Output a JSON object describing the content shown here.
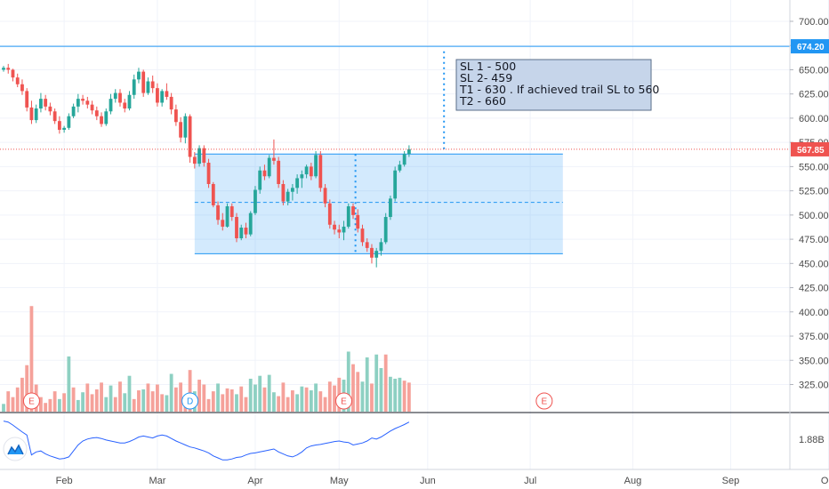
{
  "chart_data": {
    "type": "candlestick",
    "title": "",
    "price_axis": {
      "ylim": [
        297,
        722
      ],
      "ticks": [
        "700.00",
        "675.00",
        "650.00",
        "625.00",
        "600.00",
        "575.00",
        "550.00",
        "525.00",
        "500.00",
        "475.00",
        "450.00",
        "425.00",
        "400.00",
        "375.00",
        "350.00",
        "325.00"
      ],
      "tick_values": [
        700,
        675,
        650,
        625,
        600,
        575,
        550,
        525,
        500,
        475,
        450,
        425,
        400,
        375,
        350,
        325
      ]
    },
    "time_axis": {
      "labels": [
        "Feb",
        "Mar",
        "Apr",
        "May",
        "Jun",
        "Jul",
        "Aug",
        "Sep",
        "Oct"
      ],
      "label_bars": [
        13,
        33,
        54,
        72,
        91,
        113,
        135,
        156,
        177
      ]
    },
    "last_price": {
      "value": 567.85,
      "label": "567.85",
      "color": "#ef5350"
    },
    "horizontal_level": {
      "value": 674.2,
      "label": "674.20",
      "color": "#2196f3"
    },
    "range_box": {
      "top": 563,
      "bottom": 460,
      "mid": 513,
      "from_bar": 41,
      "to_bar": 120
    },
    "vertical_markers": [
      {
        "bar": 75.5,
        "from": 563,
        "to": 460
      },
      {
        "bar": 94.5,
        "from": 568,
        "to": 669
      }
    ],
    "annotation": {
      "lines": [
        "SL 1 - 500",
        "SL 2- 459",
        "T1 - 630 . If achieved trail SL to 560",
        "T2 - 660"
      ]
    },
    "volume_axis_max": 350,
    "candles": [
      [
        650,
        654,
        648,
        652
      ],
      [
        652,
        656,
        646,
        650
      ],
      [
        650,
        651,
        638,
        642
      ],
      [
        642,
        646,
        632,
        635
      ],
      [
        635,
        640,
        624,
        628
      ],
      [
        628,
        631,
        607,
        611
      ],
      [
        611,
        618,
        594,
        598
      ],
      [
        598,
        614,
        595,
        610
      ],
      [
        610,
        626,
        606,
        620
      ],
      [
        620,
        624,
        608,
        612
      ],
      [
        612,
        616,
        603,
        607
      ],
      [
        607,
        610,
        594,
        597
      ],
      [
        597,
        602,
        584,
        588
      ],
      [
        588,
        592,
        585,
        590
      ],
      [
        590,
        605,
        588,
        602
      ],
      [
        602,
        615,
        600,
        612
      ],
      [
        612,
        625,
        606,
        620
      ],
      [
        620,
        624,
        614,
        618
      ],
      [
        618,
        622,
        610,
        614
      ],
      [
        614,
        618,
        604,
        608
      ],
      [
        608,
        612,
        598,
        602
      ],
      [
        602,
        606,
        591,
        594
      ],
      [
        594,
        610,
        592,
        607
      ],
      [
        607,
        625,
        604,
        620
      ],
      [
        620,
        630,
        616,
        626
      ],
      [
        626,
        630,
        612,
        616
      ],
      [
        616,
        620,
        606,
        610
      ],
      [
        610,
        628,
        608,
        624
      ],
      [
        624,
        645,
        620,
        640
      ],
      [
        640,
        652,
        636,
        648
      ],
      [
        648,
        650,
        622,
        626
      ],
      [
        626,
        642,
        624,
        638
      ],
      [
        638,
        644,
        626,
        631
      ],
      [
        631,
        636,
        612,
        616
      ],
      [
        616,
        630,
        612,
        628
      ],
      [
        628,
        636,
        619,
        622
      ],
      [
        622,
        626,
        604,
        609
      ],
      [
        609,
        614,
        592,
        596
      ],
      [
        596,
        601,
        575,
        580
      ],
      [
        580,
        605,
        574,
        602
      ],
      [
        602,
        604,
        554,
        560
      ],
      [
        560,
        565,
        548,
        553
      ],
      [
        553,
        572,
        550,
        569
      ],
      [
        569,
        572,
        550,
        554
      ],
      [
        554,
        558,
        528,
        532
      ],
      [
        532,
        534,
        508,
        510
      ],
      [
        510,
        514,
        490,
        495
      ],
      [
        495,
        502,
        484,
        488
      ],
      [
        488,
        512,
        487,
        509
      ],
      [
        509,
        512,
        494,
        498
      ],
      [
        498,
        502,
        472,
        476
      ],
      [
        476,
        490,
        474,
        487
      ],
      [
        487,
        492,
        476,
        480
      ],
      [
        480,
        504,
        478,
        502
      ],
      [
        502,
        530,
        500,
        526
      ],
      [
        526,
        550,
        522,
        546
      ],
      [
        546,
        552,
        536,
        540
      ],
      [
        540,
        562,
        538,
        559
      ],
      [
        559,
        578,
        552,
        556
      ],
      [
        556,
        560,
        528,
        532
      ],
      [
        532,
        536,
        510,
        514
      ],
      [
        514,
        527,
        510,
        524
      ],
      [
        524,
        532,
        515,
        528
      ],
      [
        528,
        542,
        522,
        538
      ],
      [
        538,
        546,
        528,
        542
      ],
      [
        542,
        552,
        538,
        550
      ],
      [
        550,
        554,
        536,
        540
      ],
      [
        540,
        566,
        538,
        562
      ],
      [
        562,
        566,
        524,
        528
      ],
      [
        528,
        532,
        508,
        512
      ],
      [
        512,
        516,
        486,
        490
      ],
      [
        490,
        494,
        480,
        485
      ],
      [
        485,
        490,
        476,
        482
      ],
      [
        482,
        494,
        474,
        488
      ],
      [
        488,
        512,
        486,
        509
      ],
      [
        509,
        512,
        496,
        500
      ],
      [
        500,
        506,
        482,
        486
      ],
      [
        486,
        490,
        468,
        472
      ],
      [
        472,
        476,
        462,
        466
      ],
      [
        466,
        470,
        450,
        456
      ],
      [
        456,
        466,
        446,
        463
      ],
      [
        463,
        476,
        458,
        472
      ],
      [
        472,
        502,
        470,
        498
      ],
      [
        498,
        520,
        495,
        517
      ],
      [
        517,
        550,
        514,
        546
      ],
      [
        546,
        556,
        544,
        552
      ],
      [
        552,
        566,
        550,
        563
      ],
      [
        563,
        572,
        560,
        568
      ]
    ],
    "volumes": [
      [
        305,
        1
      ],
      [
        318,
        0
      ],
      [
        312,
        0
      ],
      [
        322,
        0
      ],
      [
        332,
        0
      ],
      [
        345,
        0
      ],
      [
        406,
        0
      ],
      [
        325,
        0
      ],
      [
        312,
        0
      ],
      [
        306,
        0
      ],
      [
        310,
        0
      ],
      [
        318,
        0
      ],
      [
        310,
        1
      ],
      [
        316,
        0
      ],
      [
        354,
        1
      ],
      [
        322,
        0
      ],
      [
        309,
        1
      ],
      [
        317,
        1
      ],
      [
        326,
        0
      ],
      [
        315,
        0
      ],
      [
        320,
        0
      ],
      [
        327,
        0
      ],
      [
        312,
        1
      ],
      [
        324,
        1
      ],
      [
        312,
        0
      ],
      [
        328,
        0
      ],
      [
        316,
        1
      ],
      [
        334,
        1
      ],
      [
        310,
        0
      ],
      [
        319,
        0
      ],
      [
        320,
        1
      ],
      [
        326,
        0
      ],
      [
        318,
        0
      ],
      [
        325,
        0
      ],
      [
        315,
        0
      ],
      [
        314,
        1
      ],
      [
        336,
        1
      ],
      [
        322,
        0
      ],
      [
        327,
        0
      ],
      [
        314,
        0
      ],
      [
        340,
        0
      ],
      [
        318,
        1
      ],
      [
        330,
        0
      ],
      [
        325,
        0
      ],
      [
        310,
        0
      ],
      [
        318,
        0
      ],
      [
        326,
        1
      ],
      [
        315,
        0
      ],
      [
        321,
        0
      ],
      [
        320,
        0
      ],
      [
        315,
        1
      ],
      [
        323,
        0
      ],
      [
        312,
        0
      ],
      [
        331,
        1
      ],
      [
        325,
        1
      ],
      [
        334,
        1
      ],
      [
        322,
        0
      ],
      [
        335,
        1
      ],
      [
        317,
        1
      ],
      [
        313,
        0
      ],
      [
        327,
        0
      ],
      [
        312,
        0
      ],
      [
        319,
        0
      ],
      [
        315,
        1
      ],
      [
        323,
        1
      ],
      [
        322,
        0
      ],
      [
        319,
        1
      ],
      [
        326,
        1
      ],
      [
        318,
        0
      ],
      [
        312,
        0
      ],
      [
        328,
        0
      ],
      [
        324,
        0
      ],
      [
        332,
        0
      ],
      [
        330,
        1
      ],
      [
        359,
        1
      ],
      [
        346,
        0
      ],
      [
        338,
        0
      ],
      [
        328,
        1
      ],
      [
        353,
        1
      ],
      [
        326,
        0
      ],
      [
        356,
        1
      ],
      [
        342,
        1
      ],
      [
        356,
        0
      ],
      [
        333,
        1
      ],
      [
        331,
        1
      ],
      [
        332,
        1
      ],
      [
        329,
        0
      ],
      [
        327,
        0
      ]
    ],
    "indicator": {
      "label": "1.88B",
      "values": [
        90,
        88,
        82,
        75,
        68,
        62,
        22,
        28,
        30,
        24,
        20,
        17,
        14,
        15,
        18,
        30,
        42,
        50,
        54,
        56,
        57,
        55,
        52,
        50,
        48,
        46,
        46,
        49,
        53,
        58,
        60,
        58,
        56,
        60,
        62,
        60,
        55,
        50,
        46,
        42,
        38,
        36,
        33,
        30,
        26,
        20,
        16,
        12,
        12,
        14,
        17,
        18,
        22,
        25,
        26,
        28,
        30,
        32,
        34,
        28,
        24,
        20,
        18,
        22,
        28,
        36,
        40,
        42,
        43,
        45,
        47,
        49,
        50,
        48,
        47,
        42,
        44,
        46,
        50,
        56,
        54,
        58,
        64,
        70,
        75,
        79,
        83,
        88
      ]
    },
    "events": [
      {
        "label": "E",
        "bar": 6,
        "color": "#ef5350"
      },
      {
        "label": "D",
        "bar": 40,
        "color": "#2196f3"
      },
      {
        "label": "E",
        "bar": 73,
        "color": "#ef5350"
      },
      {
        "label": "E",
        "bar": 116,
        "color": "#ef5350"
      }
    ],
    "colors": {
      "up": "#26a69a",
      "down": "#ef5350",
      "up_vol": "#8dd0c2",
      "down_vol": "#f5a19a",
      "indicator": "#2962ff"
    }
  }
}
